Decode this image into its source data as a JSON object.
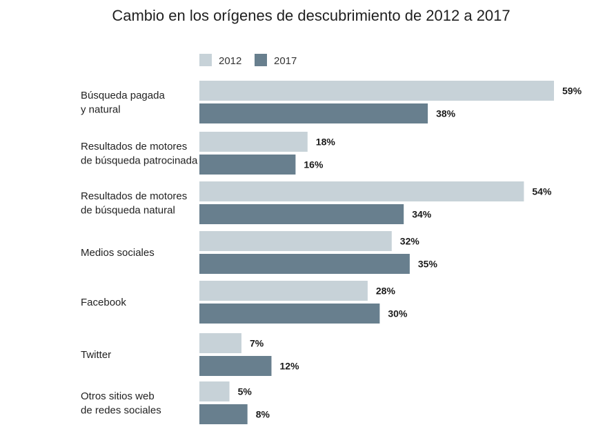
{
  "chart_data": {
    "type": "bar",
    "orientation": "horizontal",
    "title": "Cambio en los orígenes de descubrimiento de 2012 a 2017",
    "xlabel": "",
    "ylabel": "",
    "unit": "%",
    "xlim": [
      0,
      59
    ],
    "grid": false,
    "legend_position": "top-left",
    "categories": [
      [
        "Búsqueda pagada",
        "y natural"
      ],
      [
        "Resultados de motores",
        "de búsqueda patrocinada"
      ],
      [
        "Resultados de motores",
        "de búsqueda natural"
      ],
      [
        "Medios sociales"
      ],
      [
        "Facebook"
      ],
      [
        "Twitter"
      ],
      [
        "Otros sitios web",
        "de redes sociales"
      ]
    ],
    "series": [
      {
        "name": "2012",
        "color": "#c7d2d8",
        "values": [
          59,
          18,
          54,
          32,
          28,
          7,
          5
        ]
      },
      {
        "name": "2017",
        "color": "#687f8e",
        "values": [
          38,
          16,
          34,
          35,
          30,
          12,
          8
        ]
      }
    ]
  }
}
